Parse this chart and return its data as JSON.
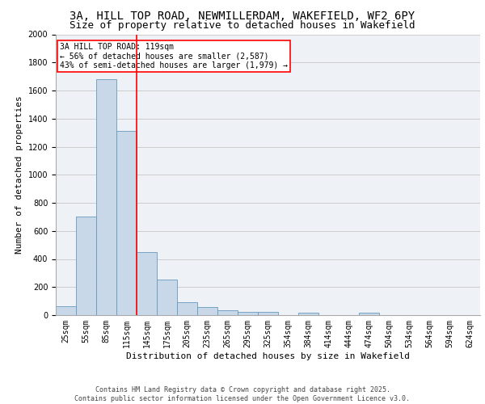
{
  "title_line1": "3A, HILL TOP ROAD, NEWMILLERDAM, WAKEFIELD, WF2 6PY",
  "title_line2": "Size of property relative to detached houses in Wakefield",
  "xlabel": "Distribution of detached houses by size in Wakefield",
  "ylabel": "Number of detached properties",
  "categories": [
    "25sqm",
    "55sqm",
    "85sqm",
    "115sqm",
    "145sqm",
    "175sqm",
    "205sqm",
    "235sqm",
    "265sqm",
    "295sqm",
    "325sqm",
    "354sqm",
    "384sqm",
    "414sqm",
    "444sqm",
    "474sqm",
    "504sqm",
    "534sqm",
    "564sqm",
    "594sqm",
    "624sqm"
  ],
  "values": [
    65,
    700,
    1680,
    1310,
    450,
    255,
    90,
    55,
    35,
    25,
    25,
    0,
    15,
    0,
    0,
    15,
    0,
    0,
    0,
    0,
    0
  ],
  "bar_color": "#c8d8e8",
  "bar_edge_color": "#6699bb",
  "red_line_x": 3.5,
  "annotation_line1": "3A HILL TOP ROAD: 119sqm",
  "annotation_line2": "← 56% of detached houses are smaller (2,587)",
  "annotation_line3": "43% of semi-detached houses are larger (1,979) →",
  "ylim": [
    0,
    2000
  ],
  "yticks": [
    0,
    200,
    400,
    600,
    800,
    1000,
    1200,
    1400,
    1600,
    1800,
    2000
  ],
  "grid_color": "#cccccc",
  "background_color": "#eef2f7",
  "footer_line1": "Contains HM Land Registry data © Crown copyright and database right 2025.",
  "footer_line2": "Contains public sector information licensed under the Open Government Licence v3.0.",
  "title_fontsize": 10,
  "subtitle_fontsize": 9,
  "axis_label_fontsize": 8,
  "tick_fontsize": 7,
  "annotation_fontsize": 7,
  "footer_fontsize": 6
}
